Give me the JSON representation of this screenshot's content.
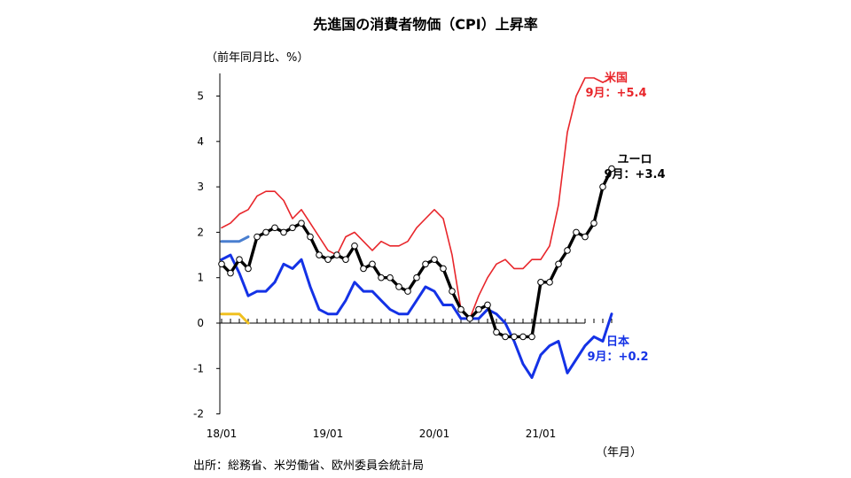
{
  "title": "先進国の消費者物価（CPI）上昇率",
  "y_unit_label": "（前年同月比、%）",
  "x_unit_label": "（年月）",
  "source": "出所：総務省、米労働省、欧州委員会統計局",
  "colors": {
    "us": "#e8262b",
    "euro": "#000000",
    "japan": "#1432e6",
    "euro_prev": "#4a7fd0",
    "japan_prev": "#f0c020",
    "axis": "#000000"
  },
  "chart_data": {
    "type": "line",
    "title": "先進国の消費者物価（CPI）上昇率",
    "ylabel": "（前年同月比、%）",
    "xlabel": "（年月）",
    "ylim": [
      -2,
      5.5
    ],
    "yticks": [
      -2,
      -1,
      0,
      1,
      2,
      3,
      4,
      5
    ],
    "x_start": "2018-01",
    "x_end": "2021-09",
    "x_tick_labels": [
      "18/01",
      "19/01",
      "20/01",
      "21/01"
    ],
    "grid": false,
    "series": [
      {
        "key": "us",
        "name": "米国",
        "values": [
          2.1,
          2.2,
          2.4,
          2.5,
          2.8,
          2.9,
          2.9,
          2.7,
          2.3,
          2.5,
          2.2,
          1.9,
          1.6,
          1.5,
          1.9,
          2.0,
          1.8,
          1.6,
          1.8,
          1.7,
          1.7,
          1.8,
          2.1,
          2.3,
          2.5,
          2.3,
          1.5,
          0.3,
          0.1,
          0.6,
          1.0,
          1.3,
          1.4,
          1.2,
          1.2,
          1.4,
          1.4,
          1.7,
          2.6,
          4.2,
          5.0,
          5.4,
          5.4,
          5.3,
          5.4
        ],
        "annotation": {
          "label": "米国",
          "value_label": "9月：+5.4"
        }
      },
      {
        "key": "euro",
        "name": "ユーロ",
        "values": [
          1.3,
          1.1,
          1.4,
          1.2,
          1.9,
          2.0,
          2.1,
          2.0,
          2.1,
          2.2,
          1.9,
          1.5,
          1.4,
          1.5,
          1.4,
          1.7,
          1.2,
          1.3,
          1.0,
          1.0,
          0.8,
          0.7,
          1.0,
          1.3,
          1.4,
          1.2,
          0.7,
          0.3,
          0.1,
          0.3,
          0.4,
          -0.2,
          -0.3,
          -0.3,
          -0.3,
          -0.3,
          0.9,
          0.9,
          1.3,
          1.6,
          2.0,
          1.9,
          2.2,
          3.0,
          3.4
        ],
        "annotation": {
          "label": "ユーロ",
          "value_label": "9月：+3.4"
        }
      },
      {
        "key": "japan",
        "name": "日本",
        "values": [
          1.4,
          1.5,
          1.1,
          0.6,
          0.7,
          0.7,
          0.9,
          1.3,
          1.2,
          1.4,
          0.8,
          0.3,
          0.2,
          0.2,
          0.5,
          0.9,
          0.7,
          0.7,
          0.5,
          0.3,
          0.2,
          0.2,
          0.5,
          0.8,
          0.7,
          0.4,
          0.4,
          0.1,
          0.1,
          0.1,
          0.3,
          0.2,
          0.0,
          -0.4,
          -0.9,
          -1.2,
          -0.7,
          -0.5,
          -0.4,
          -1.1,
          -0.8,
          -0.5,
          -0.3,
          -0.4,
          0.2
        ],
        "annotation": {
          "label": "日本",
          "value_label": "9月：+0.2"
        }
      },
      {
        "key": "euro_prev",
        "name": "",
        "values": [
          1.8,
          1.8,
          1.8,
          1.9
        ]
      },
      {
        "key": "japan_prev",
        "name": "",
        "values": [
          0.2,
          0.2,
          0.2,
          0.0
        ]
      }
    ]
  }
}
